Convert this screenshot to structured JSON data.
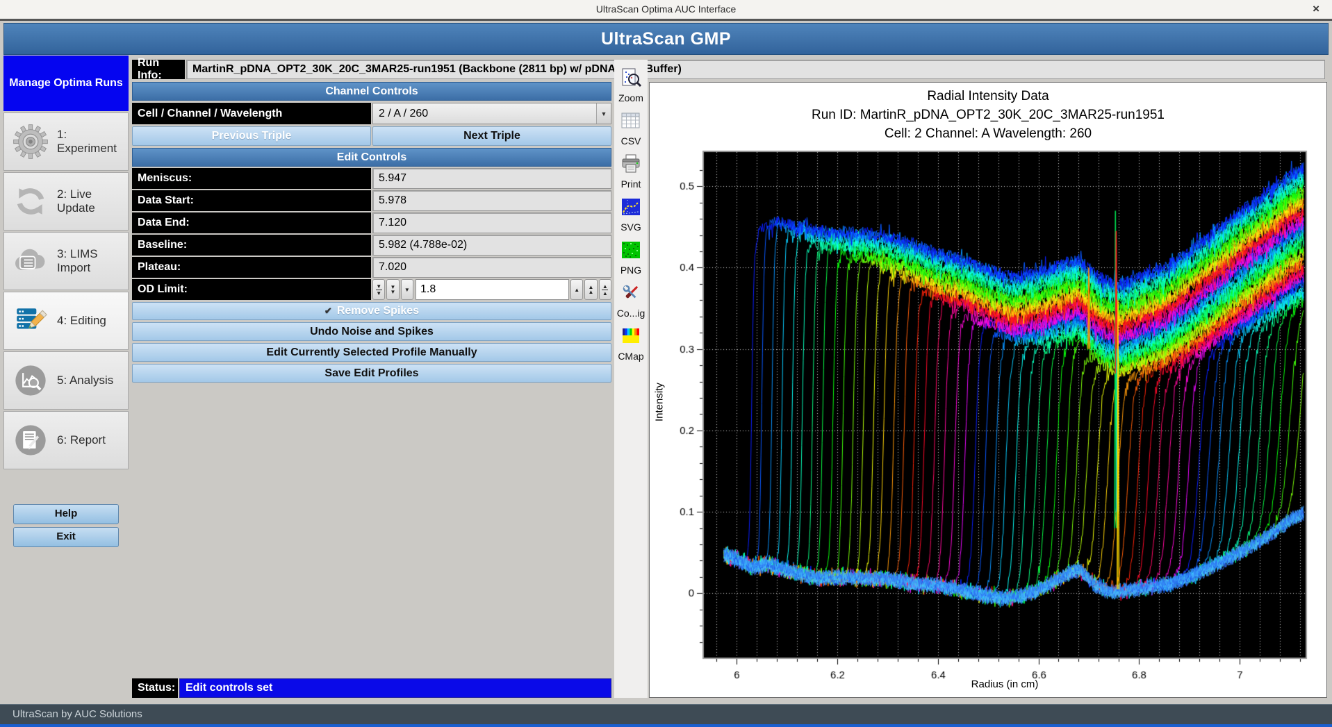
{
  "window": {
    "title": "UltraScan Optima AUC Interface"
  },
  "icons": {
    "close": "×",
    "check": "✔",
    "dropdown": "▼",
    "up": "▲",
    "down": "▼"
  },
  "header": {
    "title": "UltraScan GMP"
  },
  "sidebar": {
    "panel_title": "Manage Optima Runs",
    "steps": [
      {
        "label": "1: Experiment"
      },
      {
        "label": "2: Live Update"
      },
      {
        "label": "3: LIMS Import"
      },
      {
        "label": "4: Editing"
      },
      {
        "label": "5: Analysis"
      },
      {
        "label": "6: Report"
      }
    ],
    "help": "Help",
    "exit": "Exit"
  },
  "controls": {
    "run_info_label": "Run Info:",
    "run_info_value": "MartinR_pDNA_OPT2_30K_20C_3MAR25-run1951  (Backbone (2811 bp) w/ pDNA AUC Buffer)",
    "channel_banner": "Channel Controls",
    "cell_label": "Cell / Channel / Wavelength",
    "cell_value": "2 / A / 260",
    "prev_triple": "Previous Triple",
    "next_triple": "Next Triple",
    "edit_banner": "Edit Controls",
    "fields": [
      {
        "label": "Meniscus:",
        "value": "5.947"
      },
      {
        "label": "Data Start:",
        "value": "5.978"
      },
      {
        "label": "Data End:",
        "value": "7.120"
      },
      {
        "label": "Baseline:",
        "value": "5.982 (4.788e-02)"
      },
      {
        "label": "Plateau:",
        "value": "7.020"
      }
    ],
    "od_limit_label": "OD Limit:",
    "od_limit_value": "1.8",
    "remove_spikes": "Remove Spikes",
    "undo_button": "Undo Noise and Spikes",
    "edit_manual_button": "Edit Currently Selected Profile Manually",
    "save_button": "Save Edit Profiles",
    "status_label": "Status:",
    "status_value": "Edit controls set"
  },
  "toolbar": {
    "items": [
      {
        "label": "Zoom",
        "icon": "zoom-plot-icon"
      },
      {
        "label": "CSV",
        "icon": "csv-export-icon"
      },
      {
        "label": "Print",
        "icon": "print-icon"
      },
      {
        "label": "SVG",
        "icon": "svg-export-icon"
      },
      {
        "label": "PNG",
        "icon": "png-export-icon"
      },
      {
        "label": "Co...ig",
        "icon": "config-icon"
      },
      {
        "label": "CMap",
        "icon": "colormap-icon"
      }
    ]
  },
  "statusbar": {
    "text": "UltraScan by AUC Solutions"
  },
  "chart_data": {
    "type": "line",
    "title": "Radial Intensity Data",
    "subtitle": "Run ID: MartinR_pDNA_OPT2_30K_20C_3MAR25-run1951",
    "subtitle2": "Cell: 2  Channel: A  Wavelength: 260",
    "xlabel": "Radius (in cm)",
    "ylabel": "Intensity",
    "xlim": [
      5.935,
      7.131
    ],
    "ylim": [
      -0.079,
      0.542
    ],
    "x_ticks": [
      6,
      6.2,
      6.4,
      6.6,
      6.8,
      7
    ],
    "x_tick_labels": [
      "6",
      "6.2",
      "6.4",
      "6.6",
      "6.8",
      "7"
    ],
    "y_ticks": [
      0,
      0.1,
      0.2,
      0.3,
      0.4,
      0.5
    ],
    "y_tick_labels": [
      "0",
      "0.1",
      "0.2",
      "0.3",
      "0.4",
      "0.5"
    ],
    "x_minor_step": 0.04,
    "y_minor_step": 0.02,
    "grid": {
      "vertical_step": 0.04,
      "horizontal_step": 0.1,
      "style": "dotted",
      "color": "#ffffff",
      "background": "#000000"
    },
    "legend": "none",
    "series_model": {
      "description": "~55 sedimentation-velocity intensity scans; each scan follows a depleted baseline left of its moving boundary, rises steeply at the boundary, then follows the common lamp-intensity plateau envelope (minus a per-scan offset). Scan colors cycle through a rainbow palette by scan index.",
      "n_scans": 55,
      "x_start": 5.975,
      "x_end": 7.128,
      "first_boundary_radius": 6.03,
      "boundary_step": 0.0202,
      "boundary_width_base": 0.008,
      "boundary_width_step": 0.0004,
      "plateau_drop_per_scan": 0.0032,
      "plateau_drop_max": 0.165,
      "palette_period": 22,
      "palette_hue_start": 235,
      "palette_hue_span": 300,
      "plateau_envelope": [
        [
          5.975,
          0.41
        ],
        [
          6.02,
          0.42
        ],
        [
          6.05,
          0.45
        ],
        [
          6.08,
          0.458
        ],
        [
          6.12,
          0.452
        ],
        [
          6.18,
          0.446
        ],
        [
          6.25,
          0.445
        ],
        [
          6.3,
          0.44
        ],
        [
          6.35,
          0.432
        ],
        [
          6.4,
          0.42
        ],
        [
          6.45,
          0.412
        ],
        [
          6.5,
          0.4
        ],
        [
          6.55,
          0.39
        ],
        [
          6.6,
          0.396
        ],
        [
          6.64,
          0.405
        ],
        [
          6.68,
          0.412
        ],
        [
          6.72,
          0.39
        ],
        [
          6.76,
          0.38
        ],
        [
          6.8,
          0.39
        ],
        [
          6.85,
          0.402
        ],
        [
          6.9,
          0.422
        ],
        [
          6.95,
          0.446
        ],
        [
          7.0,
          0.47
        ],
        [
          7.05,
          0.492
        ],
        [
          7.1,
          0.515
        ],
        [
          7.13,
          0.525
        ]
      ],
      "baseline_profile": [
        [
          5.975,
          0.048
        ],
        [
          6.0,
          0.042
        ],
        [
          6.03,
          0.032
        ],
        [
          6.06,
          0.036
        ],
        [
          6.09,
          0.03
        ],
        [
          6.12,
          0.025
        ],
        [
          6.16,
          0.019
        ],
        [
          6.2,
          0.02
        ],
        [
          6.25,
          0.019
        ],
        [
          6.3,
          0.018
        ],
        [
          6.35,
          0.012
        ],
        [
          6.4,
          0.01
        ],
        [
          6.45,
          0.004
        ],
        [
          6.5,
          -0.003
        ],
        [
          6.53,
          -0.006
        ],
        [
          6.56,
          -0.004
        ],
        [
          6.6,
          0.004
        ],
        [
          6.64,
          0.018
        ],
        [
          6.68,
          0.03
        ],
        [
          6.71,
          0.012
        ],
        [
          6.74,
          0.002
        ],
        [
          6.78,
          0.004
        ],
        [
          6.82,
          0.008
        ],
        [
          6.86,
          0.012
        ],
        [
          6.9,
          0.02
        ],
        [
          6.95,
          0.035
        ],
        [
          7.0,
          0.05
        ],
        [
          7.05,
          0.068
        ],
        [
          7.1,
          0.09
        ],
        [
          7.128,
          0.1
        ]
      ],
      "noise": {
        "plateau": 0.016,
        "baseline": 0.01
      },
      "spikes": [
        {
          "x": 6.753,
          "y_from": 0.08,
          "y_to": 0.47,
          "color": "#00e050"
        },
        {
          "x": 6.7545,
          "y_from": 0.27,
          "y_to": 0.445,
          "color": "#ff2020"
        },
        {
          "x": 6.756,
          "y_from": 0.1,
          "y_to": 0.3,
          "color": "#00d8c8"
        },
        {
          "x": 6.758,
          "y_from": 0.005,
          "y_to": 0.36,
          "color": "#ffd800"
        },
        {
          "x": 6.7,
          "y_from": 0.3,
          "y_to": 0.4,
          "color": "#ff9000"
        }
      ],
      "baseline_band_colors": [
        "#3a7bff",
        "#39b9f7",
        "#2b66f0",
        "#45d0ff",
        "#2f8df5",
        "#53b4ff",
        "#1f57e6",
        "#41c4f2",
        "#3aa0ff",
        "#2d74f2"
      ]
    }
  }
}
